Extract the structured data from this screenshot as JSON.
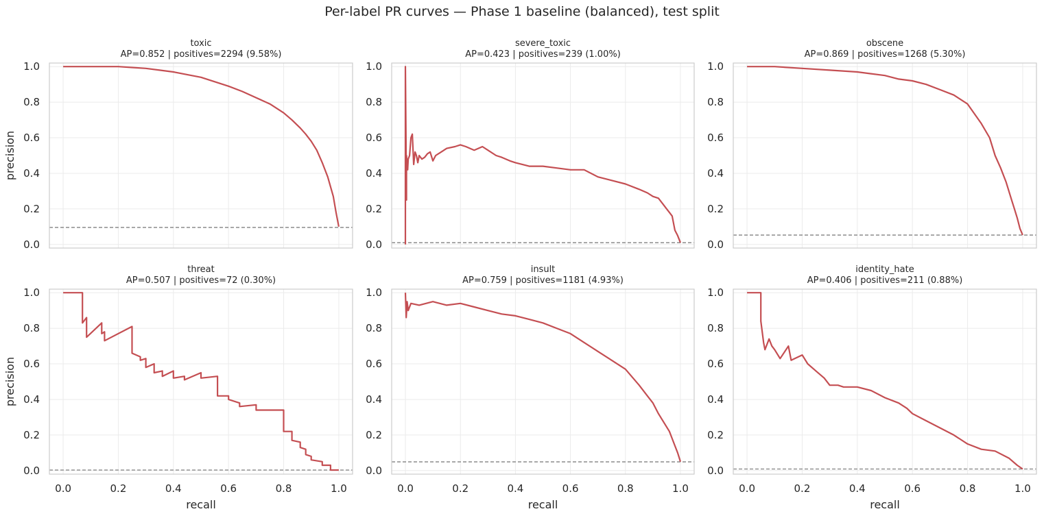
{
  "figure": {
    "suptitle": "Per-label PR curves — Phase 1 baseline (balanced), test split"
  },
  "colors": {
    "curve": "#c44e52",
    "baseline": "#808080",
    "grid": "#ebebeb",
    "spine": "#cccccc",
    "text": "#262626"
  },
  "chart_data": [
    {
      "type": "line",
      "title": "toxic",
      "subtitle": "AP=0.852 | positives=2294 (9.58%)",
      "xlabel": "",
      "ylabel": "precision",
      "xlim": [
        -0.05,
        1.05
      ],
      "ylim": [
        -0.02,
        1.02
      ],
      "xticks": [],
      "yticks": [
        "0.0",
        "0.2",
        "0.4",
        "0.6",
        "0.8",
        "1.0"
      ],
      "grid": true,
      "baseline": 0.0958,
      "x": [
        0.0,
        0.1,
        0.2,
        0.25,
        0.3,
        0.35,
        0.4,
        0.45,
        0.5,
        0.55,
        0.6,
        0.65,
        0.7,
        0.75,
        0.8,
        0.83,
        0.86,
        0.88,
        0.9,
        0.92,
        0.94,
        0.96,
        0.98,
        0.99,
        1.0
      ],
      "y": [
        1.0,
        1.0,
        1.0,
        0.995,
        0.99,
        0.98,
        0.97,
        0.955,
        0.94,
        0.915,
        0.89,
        0.86,
        0.825,
        0.79,
        0.74,
        0.7,
        0.655,
        0.62,
        0.58,
        0.53,
        0.46,
        0.38,
        0.27,
        0.18,
        0.1
      ]
    },
    {
      "type": "line",
      "title": "severe_toxic",
      "subtitle": "AP=0.423 | positives=239 (1.00%)",
      "xlabel": "",
      "ylabel": "",
      "xlim": [
        -0.05,
        1.05
      ],
      "ylim": [
        -0.02,
        1.02
      ],
      "xticks": [],
      "yticks": [
        "0.0",
        "0.2",
        "0.4",
        "0.6",
        "0.8",
        "1.0"
      ],
      "grid": true,
      "baseline": 0.01,
      "x": [
        0.0,
        0.0,
        0.004,
        0.004,
        0.008,
        0.01,
        0.015,
        0.02,
        0.025,
        0.03,
        0.035,
        0.04,
        0.045,
        0.05,
        0.06,
        0.07,
        0.08,
        0.09,
        0.1,
        0.11,
        0.13,
        0.15,
        0.18,
        0.2,
        0.22,
        0.25,
        0.28,
        0.3,
        0.33,
        0.35,
        0.38,
        0.4,
        0.45,
        0.5,
        0.55,
        0.6,
        0.65,
        0.7,
        0.75,
        0.8,
        0.85,
        0.88,
        0.9,
        0.92,
        0.94,
        0.95,
        0.96,
        0.97,
        0.975,
        0.98,
        0.99,
        1.0
      ],
      "y": [
        0.0,
        1.0,
        0.25,
        0.5,
        0.42,
        0.48,
        0.5,
        0.6,
        0.62,
        0.45,
        0.52,
        0.5,
        0.46,
        0.5,
        0.48,
        0.49,
        0.51,
        0.52,
        0.47,
        0.5,
        0.52,
        0.54,
        0.55,
        0.56,
        0.55,
        0.53,
        0.55,
        0.53,
        0.5,
        0.49,
        0.47,
        0.46,
        0.44,
        0.44,
        0.43,
        0.42,
        0.42,
        0.38,
        0.36,
        0.34,
        0.31,
        0.29,
        0.27,
        0.26,
        0.22,
        0.2,
        0.18,
        0.16,
        0.12,
        0.08,
        0.05,
        0.01
      ]
    },
    {
      "type": "line",
      "title": "obscene",
      "subtitle": "AP=0.869 | positives=1268 (5.30%)",
      "xlabel": "",
      "ylabel": "",
      "xlim": [
        -0.05,
        1.05
      ],
      "ylim": [
        -0.02,
        1.02
      ],
      "xticks": [],
      "yticks": [
        "0.0",
        "0.2",
        "0.4",
        "0.6",
        "0.8",
        "1.0"
      ],
      "grid": true,
      "baseline": 0.053,
      "x": [
        0.0,
        0.1,
        0.2,
        0.3,
        0.4,
        0.45,
        0.5,
        0.55,
        0.6,
        0.65,
        0.7,
        0.75,
        0.8,
        0.85,
        0.88,
        0.9,
        0.92,
        0.94,
        0.95,
        0.96,
        0.97,
        0.98,
        0.99,
        1.0
      ],
      "y": [
        1.0,
        1.0,
        0.99,
        0.98,
        0.97,
        0.96,
        0.95,
        0.93,
        0.92,
        0.9,
        0.87,
        0.84,
        0.79,
        0.68,
        0.6,
        0.5,
        0.43,
        0.35,
        0.3,
        0.25,
        0.2,
        0.15,
        0.09,
        0.053
      ]
    },
    {
      "type": "line",
      "title": "threat",
      "subtitle": "AP=0.507 | positives=72 (0.30%)",
      "xlabel": "recall",
      "ylabel": "precision",
      "xlim": [
        -0.05,
        1.05
      ],
      "ylim": [
        -0.02,
        1.02
      ],
      "xticks": [
        "0.0",
        "0.2",
        "0.4",
        "0.6",
        "0.8",
        "1.0"
      ],
      "yticks": [
        "0.0",
        "0.2",
        "0.4",
        "0.6",
        "0.8",
        "1.0"
      ],
      "grid": true,
      "baseline": 0.003,
      "x": [
        0.0,
        0.07,
        0.07,
        0.085,
        0.085,
        0.14,
        0.14,
        0.15,
        0.15,
        0.25,
        0.25,
        0.28,
        0.28,
        0.3,
        0.3,
        0.33,
        0.33,
        0.36,
        0.36,
        0.4,
        0.4,
        0.44,
        0.44,
        0.5,
        0.5,
        0.56,
        0.56,
        0.6,
        0.6,
        0.64,
        0.64,
        0.7,
        0.7,
        0.8,
        0.8,
        0.83,
        0.83,
        0.86,
        0.86,
        0.88,
        0.88,
        0.9,
        0.9,
        0.94,
        0.94,
        0.97,
        0.97,
        1.0
      ],
      "y": [
        1.0,
        1.0,
        0.83,
        0.86,
        0.75,
        0.83,
        0.77,
        0.78,
        0.73,
        0.81,
        0.66,
        0.64,
        0.62,
        0.63,
        0.58,
        0.6,
        0.55,
        0.56,
        0.53,
        0.56,
        0.52,
        0.53,
        0.51,
        0.55,
        0.52,
        0.53,
        0.42,
        0.42,
        0.4,
        0.38,
        0.36,
        0.37,
        0.34,
        0.34,
        0.22,
        0.22,
        0.17,
        0.16,
        0.13,
        0.12,
        0.09,
        0.08,
        0.06,
        0.05,
        0.03,
        0.03,
        0.003,
        0.003
      ]
    },
    {
      "type": "line",
      "title": "insult",
      "subtitle": "AP=0.759 | positives=1181 (4.93%)",
      "xlabel": "recall",
      "ylabel": "",
      "xlim": [
        -0.05,
        1.05
      ],
      "ylim": [
        -0.02,
        1.02
      ],
      "xticks": [
        "0.0",
        "0.2",
        "0.4",
        "0.6",
        "0.8",
        "1.0"
      ],
      "yticks": [
        "0.0",
        "0.2",
        "0.4",
        "0.6",
        "0.8",
        "1.0"
      ],
      "grid": true,
      "baseline": 0.049,
      "x": [
        0.0,
        0.003,
        0.006,
        0.01,
        0.02,
        0.05,
        0.1,
        0.15,
        0.2,
        0.25,
        0.3,
        0.35,
        0.4,
        0.45,
        0.5,
        0.55,
        0.6,
        0.65,
        0.7,
        0.75,
        0.8,
        0.85,
        0.88,
        0.9,
        0.92,
        0.94,
        0.96,
        0.97,
        0.98,
        0.99,
        1.0
      ],
      "y": [
        1.0,
        0.86,
        0.95,
        0.9,
        0.94,
        0.93,
        0.95,
        0.93,
        0.94,
        0.92,
        0.9,
        0.88,
        0.87,
        0.85,
        0.83,
        0.8,
        0.77,
        0.72,
        0.67,
        0.62,
        0.57,
        0.48,
        0.42,
        0.38,
        0.32,
        0.27,
        0.22,
        0.18,
        0.14,
        0.1,
        0.05
      ]
    },
    {
      "type": "line",
      "title": "identity_hate",
      "subtitle": "AP=0.406 | positives=211 (0.88%)",
      "xlabel": "recall",
      "ylabel": "",
      "xlim": [
        -0.05,
        1.05
      ],
      "ylim": [
        -0.02,
        1.02
      ],
      "xticks": [
        "0.0",
        "0.2",
        "0.4",
        "0.6",
        "0.8",
        "1.0"
      ],
      "yticks": [
        "0.0",
        "0.2",
        "0.4",
        "0.6",
        "0.8",
        "1.0"
      ],
      "grid": true,
      "baseline": 0.009,
      "x": [
        0.0,
        0.05,
        0.05,
        0.06,
        0.065,
        0.08,
        0.09,
        0.1,
        0.12,
        0.15,
        0.16,
        0.2,
        0.22,
        0.25,
        0.28,
        0.3,
        0.33,
        0.35,
        0.4,
        0.45,
        0.5,
        0.55,
        0.58,
        0.6,
        0.65,
        0.7,
        0.75,
        0.8,
        0.85,
        0.9,
        0.95,
        0.98,
        1.0
      ],
      "y": [
        1.0,
        1.0,
        0.84,
        0.72,
        0.68,
        0.74,
        0.7,
        0.68,
        0.63,
        0.7,
        0.62,
        0.65,
        0.6,
        0.56,
        0.52,
        0.48,
        0.48,
        0.47,
        0.47,
        0.45,
        0.41,
        0.38,
        0.35,
        0.32,
        0.28,
        0.24,
        0.2,
        0.15,
        0.12,
        0.11,
        0.07,
        0.03,
        0.009
      ]
    }
  ]
}
